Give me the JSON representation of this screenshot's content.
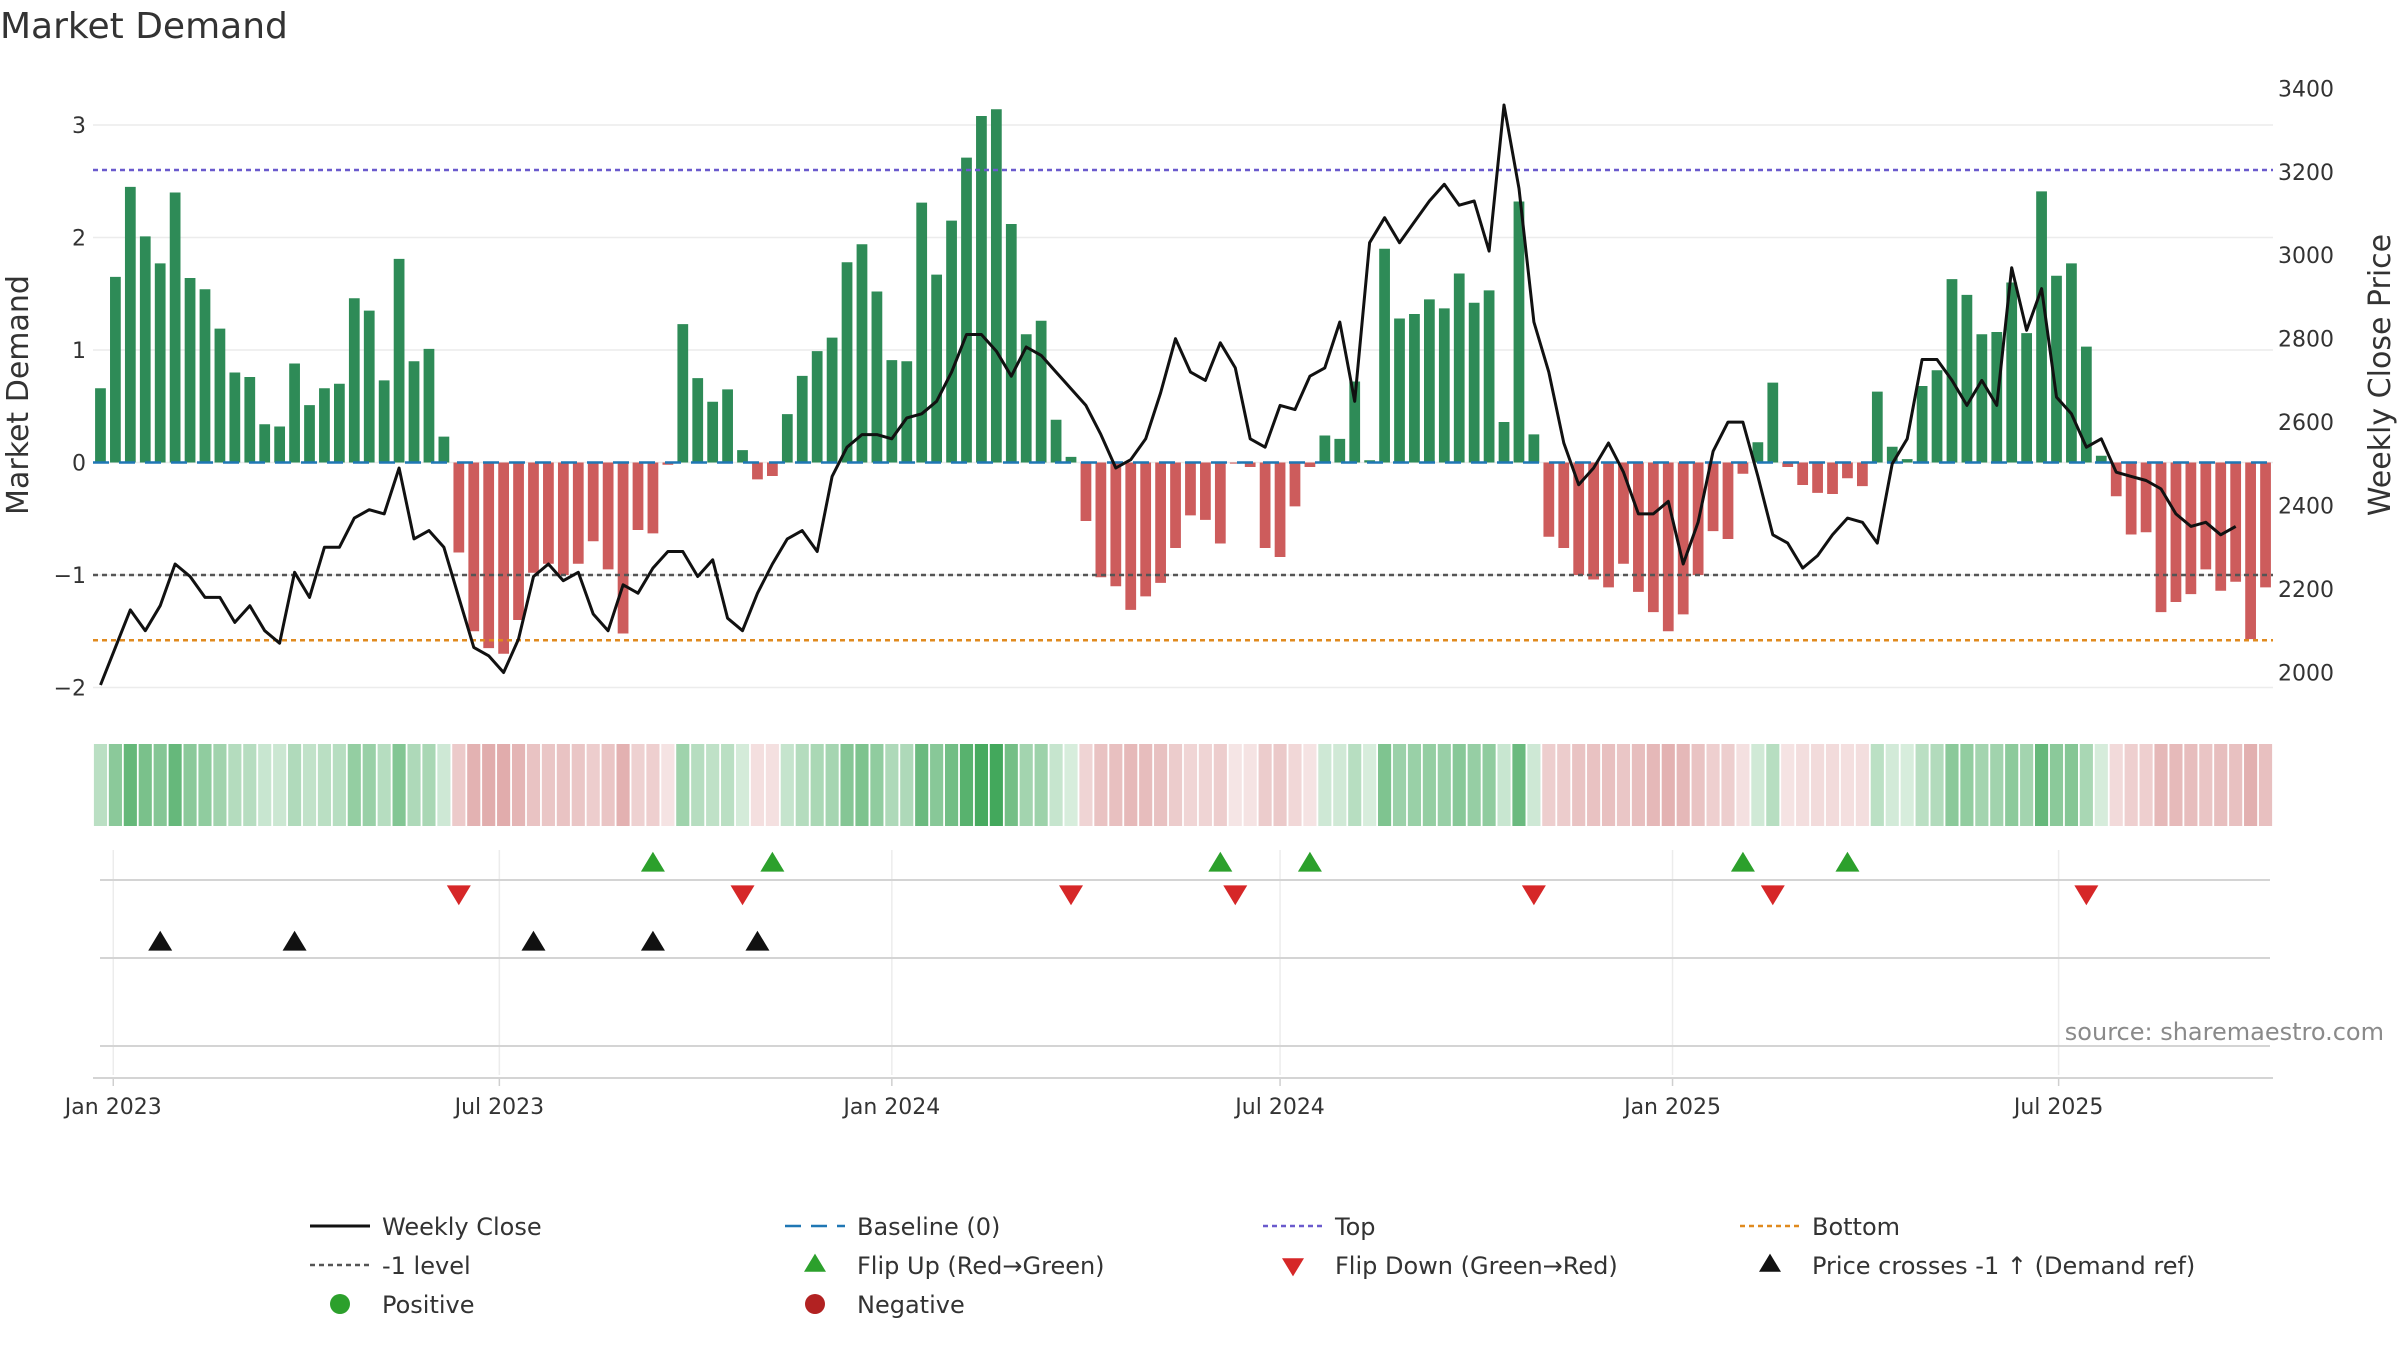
{
  "title": "Market Demand",
  "source": "source: sharemaestro.com",
  "colors": {
    "positive_bar": "#2e8b57",
    "negative_bar": "#cd5c5c",
    "price_line": "#111111",
    "baseline": "#1f77b4",
    "top": "#6a5acd",
    "bottom": "#e08a1e",
    "minus1": "#555555",
    "flip_up": "#2ca02c",
    "flip_down": "#d62728",
    "cross": "#111111",
    "positive_dot": "#2ca02c",
    "negative_dot": "#b22222"
  },
  "chart_data": {
    "type": "bar",
    "title": "Market Demand",
    "xlabel": "",
    "ylabel": "Market Demand",
    "y2label": "Weekly Close Price",
    "start_date": "2022-12-26",
    "week_step_days": 7,
    "ylim": [
      -2.2,
      3.4
    ],
    "y2lim": [
      1910,
      3420
    ],
    "yticks": [
      -2,
      -1,
      0,
      1,
      2,
      3
    ],
    "y2ticks": [
      2000,
      2200,
      2400,
      2600,
      2800,
      3000,
      3200,
      3400
    ],
    "xticks": [
      {
        "label": "Jan 2023",
        "date": "2023-01-01"
      },
      {
        "label": "Jul 2023",
        "date": "2023-07-01"
      },
      {
        "label": "Jan 2024",
        "date": "2024-01-01"
      },
      {
        "label": "Jul 2024",
        "date": "2024-07-01"
      },
      {
        "label": "Jan 2025",
        "date": "2025-01-01"
      },
      {
        "label": "Jul 2025",
        "date": "2025-07-01"
      }
    ],
    "top_level": 2.6,
    "bottom_level": -1.58,
    "minus1_level": -1,
    "demand": [
      0.66,
      1.65,
      2.45,
      2.01,
      1.77,
      2.4,
      1.64,
      1.54,
      1.19,
      0.8,
      0.76,
      0.34,
      0.32,
      0.88,
      0.51,
      0.66,
      0.7,
      1.46,
      1.35,
      0.73,
      1.81,
      0.9,
      1.01,
      0.23,
      -0.8,
      -1.5,
      -1.65,
      -1.7,
      -1.4,
      -0.98,
      -0.9,
      -1.0,
      -0.9,
      -0.7,
      -0.95,
      -1.52,
      -0.6,
      -0.63,
      -0.02,
      1.23,
      0.75,
      0.54,
      0.65,
      0.11,
      -0.15,
      -0.12,
      0.43,
      0.77,
      0.99,
      1.11,
      1.78,
      1.94,
      1.52,
      0.91,
      0.9,
      2.31,
      1.67,
      2.15,
      2.71,
      3.08,
      3.14,
      2.12,
      1.14,
      1.26,
      0.38,
      0.05,
      -0.52,
      -1.02,
      -1.1,
      -1.31,
      -1.19,
      -1.07,
      -0.76,
      -0.47,
      -0.51,
      -0.72,
      -0.01,
      -0.04,
      -0.76,
      -0.84,
      -0.39,
      -0.04,
      0.24,
      0.21,
      0.72,
      0.02,
      1.9,
      1.28,
      1.32,
      1.45,
      1.37,
      1.68,
      1.42,
      1.53,
      0.36,
      2.32,
      0.25,
      -0.66,
      -0.76,
      -1.0,
      -1.04,
      -1.11,
      -0.9,
      -1.15,
      -1.33,
      -1.5,
      -1.35,
      -1.0,
      -0.61,
      -0.68,
      -0.1,
      0.18,
      0.71,
      -0.04,
      -0.2,
      -0.27,
      -0.28,
      -0.14,
      -0.21,
      0.63,
      0.14,
      0.03,
      0.68,
      0.82,
      1.63,
      1.49,
      1.14,
      1.16,
      1.6,
      1.15,
      2.41,
      1.66,
      1.77,
      1.03,
      0.06,
      -0.3,
      -0.64,
      -0.62,
      -1.33,
      -1.24,
      -1.17,
      -0.95,
      -1.14,
      -1.06,
      -1.57,
      -1.11
    ],
    "weekly_close": [
      1970,
      2060,
      2150,
      2100,
      2160,
      2260,
      2230,
      2180,
      2180,
      2120,
      2160,
      2100,
      2070,
      2240,
      2180,
      2300,
      2300,
      2370,
      2390,
      2380,
      2490,
      2320,
      2340,
      2300,
      2180,
      2060,
      2040,
      2000,
      2080,
      2230,
      2260,
      2220,
      2240,
      2140,
      2100,
      2210,
      2190,
      2250,
      2290,
      2290,
      2230,
      2270,
      2130,
      2100,
      2190,
      2260,
      2320,
      2340,
      2290,
      2470,
      2540,
      2570,
      2570,
      2560,
      2610,
      2620,
      2650,
      2720,
      2810,
      2810,
      2770,
      2710,
      2780,
      2760,
      2720,
      2680,
      2640,
      2570,
      2490,
      2510,
      2560,
      2670,
      2800,
      2720,
      2700,
      2790,
      2730,
      2560,
      2540,
      2640,
      2630,
      2710,
      2730,
      2840,
      2650,
      3030,
      3090,
      3030,
      3080,
      3130,
      3170,
      3120,
      3130,
      3010,
      3360,
      3160,
      2840,
      2720,
      2550,
      2450,
      2490,
      2550,
      2480,
      2380,
      2380,
      2410,
      2260,
      2360,
      2530,
      2600,
      2600,
      2470,
      2330,
      2310,
      2250,
      2280,
      2330,
      2370,
      2360,
      2310,
      2500,
      2560,
      2750,
      2750,
      2700,
      2640,
      2700,
      2640,
      2970,
      2820,
      2920,
      2660,
      2620,
      2540,
      2560,
      2480,
      2470,
      2460,
      2440,
      2380,
      2350,
      2360,
      2330,
      2350
    ],
    "flip_up_weeks": [
      37,
      45,
      75,
      81,
      110,
      117
    ],
    "flip_down_weeks": [
      24,
      43,
      65,
      76,
      96,
      112,
      133
    ],
    "cross_weeks": [
      4,
      13,
      29,
      37,
      44
    ]
  },
  "legend": {
    "weekly_close": "Weekly Close",
    "baseline": "Baseline (0)",
    "top": "Top",
    "bottom": "Bottom",
    "minus1": "-1 level",
    "flip_up": "Flip Up (Red→Green)",
    "flip_down": "Flip Down (Green→Red)",
    "cross": "Price crosses -1 ↑ (Demand ref)",
    "positive": "Positive",
    "negative": "Negative"
  }
}
